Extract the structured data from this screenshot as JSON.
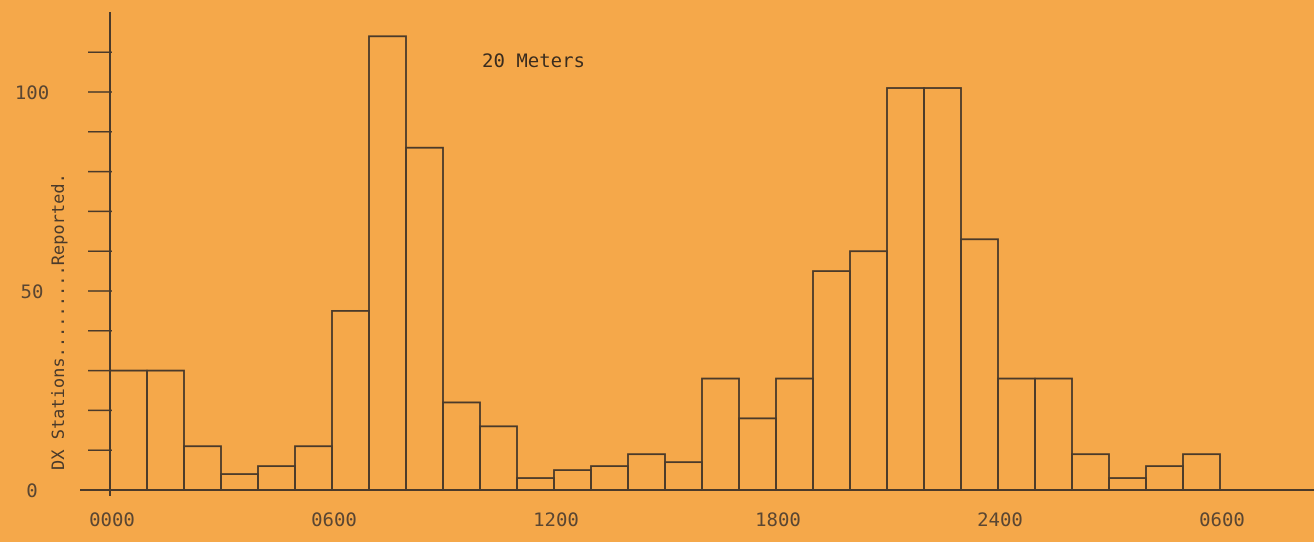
{
  "chart_data": {
    "type": "bar",
    "title": "20 Meters",
    "xlabel": "",
    "ylabel": "DX Stations.........Reported.",
    "ylim": [
      0,
      115
    ],
    "y_ticks": [
      "0",
      "50",
      "100"
    ],
    "x_ticks": [
      "0000",
      "0600",
      "1200",
      "1800",
      "2400",
      "0600"
    ],
    "grid": false,
    "colors": {
      "background": "#f5a84a",
      "ink": "#4a3a2a"
    },
    "categories": [
      "0000",
      "0100",
      "0200",
      "0300",
      "0400",
      "0500",
      "0600",
      "0700",
      "0800",
      "0900",
      "1000",
      "1100",
      "1200",
      "1300",
      "1400",
      "1500",
      "1600",
      "1700",
      "1800",
      "1900",
      "2000",
      "2100",
      "2200",
      "2300",
      "2400",
      "0100",
      "0200",
      "0300",
      "0400",
      "0500",
      "0600"
    ],
    "values": [
      30,
      30,
      11,
      4,
      6,
      11,
      45,
      114,
      86,
      22,
      16,
      3,
      5,
      6,
      9,
      7,
      28,
      18,
      28,
      55,
      60,
      101,
      101,
      63,
      28,
      28,
      9,
      3,
      6,
      9,
      0
    ]
  }
}
